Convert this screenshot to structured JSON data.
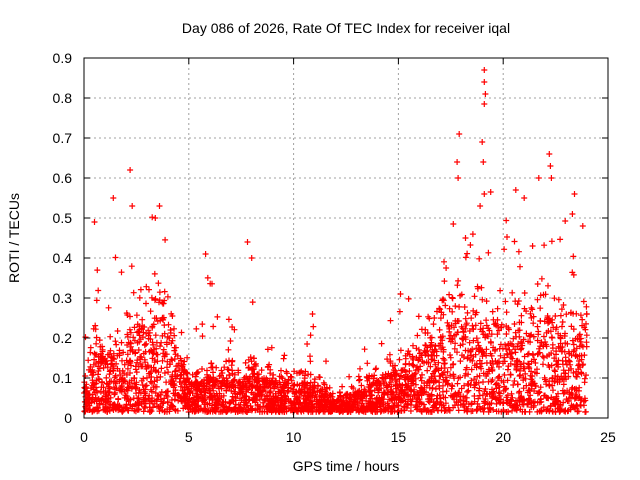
{
  "chart_data": {
    "type": "scatter",
    "title": "Day 086 of 2026, Rate Of TEC Index for receiver iqal",
    "xlabel": "GPS time / hours",
    "ylabel": "ROTI / TECUs",
    "xlim": [
      0,
      25
    ],
    "ylim": [
      0,
      0.9
    ],
    "xticks": [
      0,
      5,
      10,
      15,
      20,
      25
    ],
    "yticks": [
      0,
      0.1,
      0.2,
      0.3,
      0.4,
      0.5,
      0.6,
      0.7,
      0.8,
      0.9
    ],
    "xtick_labels": [
      "0",
      "5",
      "10",
      "15",
      "20",
      "25"
    ],
    "ytick_labels": [
      "0",
      "0.1",
      "0.2",
      "0.3",
      "0.4",
      "0.5",
      "0.6",
      "0.7",
      "0.8",
      "0.9"
    ],
    "grid": true,
    "marker": "+",
    "marker_color": "#ff0000",
    "envelope": {
      "hours": [
        0,
        0.5,
        1,
        1.5,
        2,
        2.5,
        3,
        3.5,
        4,
        4.5,
        5,
        5.5,
        6,
        6.5,
        7,
        7.5,
        8,
        8.5,
        9,
        9.5,
        10,
        10.5,
        11,
        11.5,
        12,
        12.5,
        13,
        13.5,
        14,
        14.5,
        15,
        15.5,
        16,
        16.5,
        17,
        17.5,
        18,
        18.5,
        19,
        19.5,
        20,
        20.5,
        21,
        21.5,
        22,
        22.5,
        23,
        23.5,
        24
      ],
      "typical_roti": [
        0.1,
        0.22,
        0.18,
        0.2,
        0.24,
        0.3,
        0.32,
        0.33,
        0.3,
        0.2,
        0.12,
        0.1,
        0.12,
        0.1,
        0.13,
        0.1,
        0.15,
        0.12,
        0.1,
        0.1,
        0.1,
        0.1,
        0.1,
        0.07,
        0.05,
        0.06,
        0.07,
        0.09,
        0.11,
        0.13,
        0.15,
        0.17,
        0.2,
        0.22,
        0.27,
        0.3,
        0.32,
        0.3,
        0.32,
        0.3,
        0.3,
        0.3,
        0.3,
        0.32,
        0.33,
        0.3,
        0.25,
        0.25,
        0.3
      ],
      "max_roti": [
        0.3,
        0.49,
        0.3,
        0.4,
        0.62,
        0.47,
        0.49,
        0.52,
        0.45,
        0.3,
        0.2,
        0.26,
        0.42,
        0.2,
        0.26,
        0.25,
        0.43,
        0.3,
        0.2,
        0.2,
        0.19,
        0.2,
        0.26,
        0.15,
        0.1,
        0.11,
        0.12,
        0.2,
        0.22,
        0.24,
        0.31,
        0.3,
        0.3,
        0.3,
        0.42,
        0.45,
        0.71,
        0.47,
        0.87,
        0.5,
        0.5,
        0.57,
        0.55,
        0.6,
        0.66,
        0.5,
        0.56,
        0.48,
        0.48
      ]
    },
    "spikes": [
      {
        "x": 2.2,
        "y": 0.62
      },
      {
        "x": 1.4,
        "y": 0.55
      },
      {
        "x": 0.5,
        "y": 0.49
      },
      {
        "x": 2.3,
        "y": 0.53
      },
      {
        "x": 3.6,
        "y": 0.53
      },
      {
        "x": 3.4,
        "y": 0.5
      },
      {
        "x": 5.8,
        "y": 0.41
      },
      {
        "x": 7.8,
        "y": 0.44
      },
      {
        "x": 8.0,
        "y": 0.4
      },
      {
        "x": 10.9,
        "y": 0.26
      },
      {
        "x": 15.1,
        "y": 0.31
      },
      {
        "x": 17.9,
        "y": 0.71
      },
      {
        "x": 17.8,
        "y": 0.64
      },
      {
        "x": 17.85,
        "y": 0.6
      },
      {
        "x": 19.1,
        "y": 0.87
      },
      {
        "x": 19.1,
        "y": 0.84
      },
      {
        "x": 19.15,
        "y": 0.81
      },
      {
        "x": 19.1,
        "y": 0.785
      },
      {
        "x": 19.0,
        "y": 0.69
      },
      {
        "x": 19.05,
        "y": 0.64
      },
      {
        "x": 19.1,
        "y": 0.56
      },
      {
        "x": 18.9,
        "y": 0.53
      },
      {
        "x": 20.6,
        "y": 0.57
      },
      {
        "x": 21.7,
        "y": 0.6
      },
      {
        "x": 22.2,
        "y": 0.66
      },
      {
        "x": 22.25,
        "y": 0.63
      },
      {
        "x": 22.3,
        "y": 0.6
      },
      {
        "x": 23.4,
        "y": 0.56
      },
      {
        "x": 23.3,
        "y": 0.51
      },
      {
        "x": 21.0,
        "y": 0.55
      },
      {
        "x": 23.8,
        "y": 0.48
      },
      {
        "x": 18.2,
        "y": 0.45
      }
    ]
  }
}
